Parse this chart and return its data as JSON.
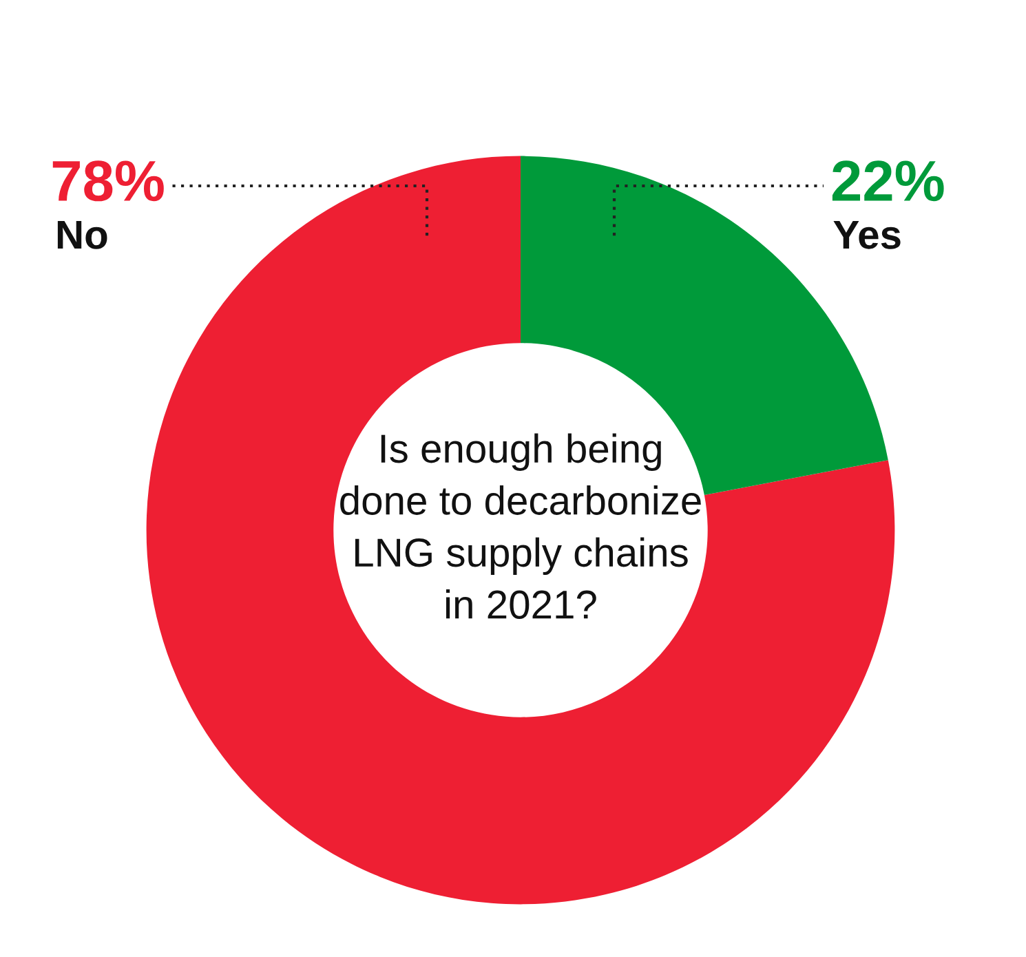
{
  "chart_data": {
    "type": "donut",
    "title": "Is enough being\ndone to decarbonize\nLNG supply chains\nin 2021?",
    "categories": [
      "No",
      "Yes"
    ],
    "values": [
      78,
      22
    ],
    "value_labels": [
      "78%",
      "22%"
    ],
    "colors": [
      "#ee1f33",
      "#009a3a"
    ]
  }
}
